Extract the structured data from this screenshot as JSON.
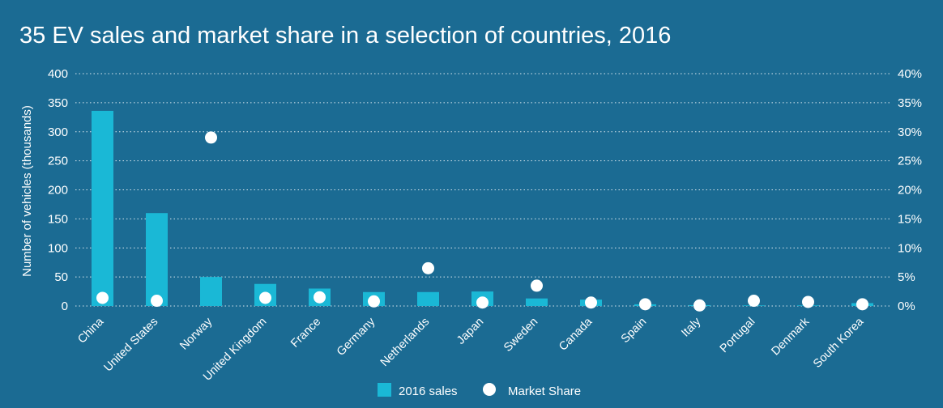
{
  "chart_data": {
    "type": "bar",
    "title": "35 EV sales and market share in a selection of countries, 2016",
    "ylabel": "Number of vehicles (thousands)",
    "y2label": "",
    "ylim": [
      0,
      400
    ],
    "y2lim": [
      0,
      40
    ],
    "yticks": [
      "0",
      "50",
      "100",
      "150",
      "200",
      "250",
      "300",
      "350",
      "400"
    ],
    "y2ticks": [
      "0%",
      "5%",
      "10%",
      "15%",
      "20%",
      "25%",
      "30%",
      "35%",
      "40%"
    ],
    "grid": true,
    "legend_position": "bottom",
    "categories": [
      "China",
      "United States",
      "Norway",
      "United Kingdom",
      "France",
      "Germany",
      "Netherlands",
      "Japan",
      "Sweden",
      "Canada",
      "Spain",
      "Italy",
      "Portugal",
      "Denmark",
      "South Korea"
    ],
    "series": [
      {
        "name": "2016 sales",
        "type": "bar",
        "axis": "left",
        "color": "#1ab8d6",
        "values": [
          336,
          160,
          50,
          38,
          30,
          24,
          24,
          25,
          13,
          11,
          3,
          1.5,
          1,
          1,
          5
        ]
      },
      {
        "name": "Market Share",
        "type": "scatter",
        "axis": "right",
        "color": "#ffffff",
        "values": [
          1.4,
          0.9,
          29,
          1.4,
          1.5,
          0.8,
          6.5,
          0.6,
          3.5,
          0.6,
          0.3,
          0.1,
          0.9,
          0.7,
          0.3
        ]
      }
    ]
  }
}
